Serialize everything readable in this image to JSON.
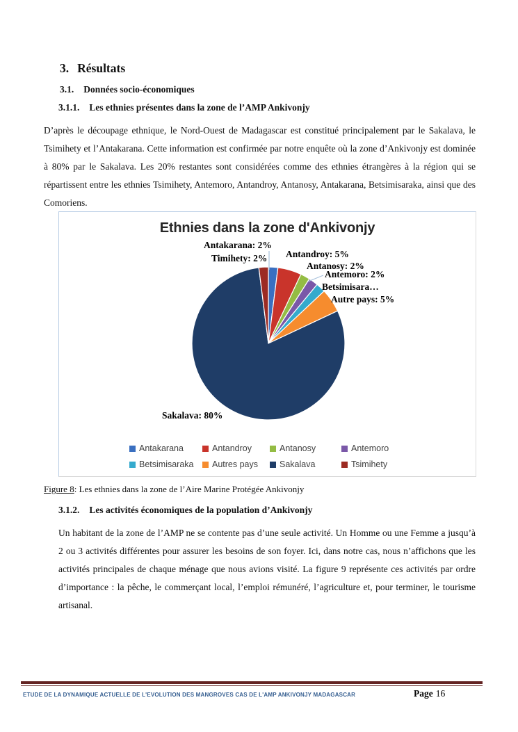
{
  "document": {
    "heading1": {
      "number": "3.",
      "text": "Résultats"
    },
    "heading2": {
      "number": "3.1.",
      "text": "Données socio-économiques"
    },
    "heading311": {
      "number": "3.1.1.",
      "text": "Les ethnies présentes dans la zone de l’AMP Ankivonjy"
    },
    "paragraph1": "D’après le découpage ethnique, le Nord-Ouest de Madagascar est constitué principalement par le Sakalava, le Tsimihety et l’Antakarana. Cette information est confirmée par notre enquête où la zone d’Ankivonjy est dominée à 80% par le Sakalava. Les 20% restantes sont considérées comme des ethnies étrangères à la région qui se répartissent entre les ethnies Tsimihety, Antemoro, Antandroy, Antanosy, Antakarana, Betsimisaraka, ainsi que des Comoriens.",
    "figure_caption": {
      "label": "Figure 8",
      "text": ": Les ethnies dans la zone de l’Aire Marine Protégée Ankivonjy"
    },
    "heading312": {
      "number": "3.1.2.",
      "text": "Les activités économiques de la population d’Ankivonjy"
    },
    "paragraph2": "Un habitant de la zone de l’AMP ne se contente pas d’une seule activité. Un Homme ou une Femme a jusqu’à 2 ou 3 activités différentes pour assurer les besoins de son foyer. Ici, dans notre cas, nous n’affichons que les activités principales de chaque ménage que nous avions visité. La figure 9 représente ces activités par ordre d’importance : la pêche, le commerçant local, l’emploi rémunéré, l’agriculture et, pour terminer, le tourisme artisanal.",
    "footer": {
      "title": "ETUDE DE LA DYNAMIQUE ACTUELLE DE L'EVOLUTION DES MANGROVES CAS DE L'AMP ANKIVONJY MADAGASCAR",
      "page_label": "Page",
      "page_number": "16",
      "rule_color": "#632423",
      "text_color": "#365f91"
    }
  },
  "chart_data": {
    "type": "pie",
    "title": "Ethnies dans la zone d'Ankivonjy",
    "categories": [
      "Antakarana",
      "Antandroy",
      "Antanosy",
      "Antemoro",
      "Betsimisaraka",
      "Autres pays",
      "Sakalava",
      "Tsimihety"
    ],
    "values": [
      2,
      5,
      2,
      2,
      2,
      5,
      80,
      2
    ],
    "colors": [
      "#3a6fc0",
      "#c9342b",
      "#94bc44",
      "#7a58a8",
      "#35aacd",
      "#f68c2e",
      "#1f3d67",
      "#9c2b23"
    ],
    "data_labels": [
      "Antakarana: 2%",
      "Antandroy: 5%",
      "Antanosy: 2%",
      "Antemoro: 2%",
      "Betsimisara…",
      "Autre pays: 5%",
      "Sakalava: 80%",
      "Timihety: 2%"
    ],
    "start_angle_deg": -90,
    "direction": "clockwise",
    "legend_position": "bottom",
    "leader_line_color": "#a7c0dc"
  }
}
